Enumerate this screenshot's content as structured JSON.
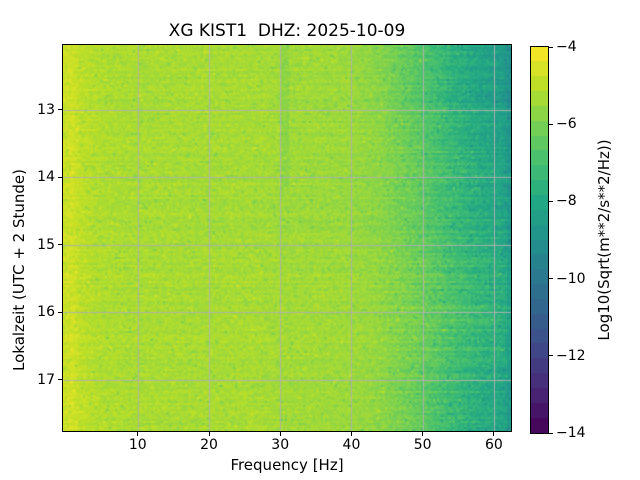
{
  "chart": {
    "title": "XG KIST1  DHZ: 2025-10-09",
    "xlabel": "Frequency [Hz]",
    "ylabel": "Lokalzeit (UTC + 2 Stunde)",
    "colorbar_label": "Log10(Sqrt(m**2/s**2/Hz))"
  },
  "chart_data": {
    "type": "heatmap",
    "subtype": "seismic-spectrogram",
    "title": "XG KIST1  DHZ: 2025-10-09",
    "xlabel": "Frequency [Hz]",
    "ylabel": "Lokalzeit (UTC + 2 Stunde)",
    "colorbar_label": "Log10(Sqrt(m**2/s**2/Hz))",
    "colormap": "viridis",
    "clim": [
      -14,
      -4
    ],
    "xlim": [
      -0.5,
      62.4
    ],
    "ylim_top_to_bottom": [
      12.04,
      17.76
    ],
    "grid_on": true,
    "grid_color": "#b0b0b0",
    "x_ticks": [
      10,
      20,
      30,
      40,
      50,
      60
    ],
    "x_tick_labels": [
      "10",
      "20",
      "30",
      "40",
      "50",
      "60"
    ],
    "y_ticks": [
      13,
      14,
      15,
      16,
      17
    ],
    "y_tick_labels": [
      "13",
      "14",
      "15",
      "16",
      "17"
    ],
    "colorbar_ticks": [
      -4,
      -6,
      -8,
      -10,
      -12,
      -14
    ],
    "colorbar_tick_labels": [
      "−4",
      "−6",
      "−8",
      "−10",
      "−12",
      "−14"
    ],
    "colorbar_levels": 26,
    "freqs_hz": [
      0,
      0.8,
      2,
      5,
      10,
      15,
      20,
      25,
      30,
      35,
      40,
      44,
      48,
      52,
      55,
      58,
      60,
      61.5,
      62.3,
      63
    ],
    "times_hours": [
      12.0,
      12.5,
      13.0,
      13.5,
      14.0,
      14.5,
      15.0,
      15.5,
      16.0,
      16.5,
      17.0,
      17.4,
      17.8
    ],
    "values_log10_sqrt_psd": [
      [
        -4.8,
        -4.7,
        -5.0,
        -5.2,
        -5.25,
        -5.25,
        -5.3,
        -5.3,
        -5.35,
        -5.4,
        -5.5,
        -5.8,
        -6.4,
        -7.2,
        -7.8,
        -8.2,
        -8.4,
        -8.6,
        -9.2,
        -10.2
      ],
      [
        -4.8,
        -4.7,
        -5.0,
        -5.2,
        -5.3,
        -5.3,
        -5.3,
        -5.3,
        -5.4,
        -5.4,
        -5.5,
        -5.8,
        -6.4,
        -7.1,
        -7.7,
        -8.1,
        -8.3,
        -8.5,
        -9.1,
        -10.1
      ],
      [
        -4.8,
        -4.7,
        -5.0,
        -5.2,
        -5.3,
        -5.3,
        -5.35,
        -5.3,
        -5.4,
        -5.45,
        -5.5,
        -5.75,
        -6.3,
        -7.0,
        -7.6,
        -8.0,
        -8.2,
        -8.4,
        -9.0,
        -10.0
      ],
      [
        -4.8,
        -4.7,
        -5.0,
        -5.2,
        -5.3,
        -5.3,
        -5.35,
        -5.3,
        -5.4,
        -5.45,
        -5.5,
        -5.7,
        -6.2,
        -6.9,
        -7.4,
        -7.9,
        -8.1,
        -8.3,
        -8.9,
        -9.9
      ],
      [
        -4.8,
        -4.7,
        -5.0,
        -5.2,
        -5.3,
        -5.3,
        -5.35,
        -5.35,
        -5.4,
        -5.45,
        -5.55,
        -5.7,
        -6.2,
        -6.8,
        -7.3,
        -7.8,
        -8.0,
        -8.2,
        -8.8,
        -9.8
      ],
      [
        -4.8,
        -4.7,
        -5.0,
        -5.25,
        -5.3,
        -5.3,
        -5.4,
        -5.35,
        -5.45,
        -5.5,
        -5.55,
        -5.75,
        -6.2,
        -6.8,
        -7.3,
        -7.7,
        -7.9,
        -8.1,
        -8.7,
        -9.7
      ],
      [
        -4.8,
        -4.7,
        -5.0,
        -5.2,
        -5.3,
        -5.3,
        -5.35,
        -5.35,
        -5.4,
        -5.45,
        -5.5,
        -5.7,
        -6.1,
        -6.7,
        -7.2,
        -7.6,
        -7.8,
        -8.0,
        -8.6,
        -9.6
      ],
      [
        -4.8,
        -4.7,
        -5.0,
        -5.2,
        -5.3,
        -5.3,
        -5.35,
        -5.3,
        -5.4,
        -5.4,
        -5.45,
        -5.6,
        -6.0,
        -6.5,
        -7.0,
        -7.4,
        -7.6,
        -7.8,
        -8.4,
        -9.5
      ],
      [
        -4.8,
        -4.7,
        -5.0,
        -5.2,
        -5.25,
        -5.25,
        -5.3,
        -5.25,
        -5.3,
        -5.35,
        -5.4,
        -5.55,
        -5.9,
        -6.4,
        -6.8,
        -7.2,
        -7.4,
        -7.6,
        -8.2,
        -9.4
      ],
      [
        -4.8,
        -4.7,
        -5.0,
        -5.2,
        -5.3,
        -5.3,
        -5.3,
        -5.3,
        -5.35,
        -5.4,
        -5.45,
        -5.6,
        -6.0,
        -6.5,
        -7.0,
        -7.4,
        -7.6,
        -7.8,
        -8.4,
        -9.5
      ],
      [
        -4.8,
        -4.7,
        -5.0,
        -5.2,
        -5.3,
        -5.3,
        -5.35,
        -5.3,
        -5.4,
        -5.4,
        -5.5,
        -5.65,
        -6.1,
        -6.7,
        -7.2,
        -7.6,
        -7.8,
        -8.0,
        -8.6,
        -9.8
      ],
      [
        -4.8,
        -4.7,
        -5.0,
        -5.2,
        -5.3,
        -5.3,
        -5.35,
        -5.3,
        -5.4,
        -5.45,
        -5.5,
        -5.7,
        -6.2,
        -6.9,
        -7.4,
        -7.8,
        -8.0,
        -8.2,
        -8.8,
        -10.2
      ],
      [
        -4.8,
        -4.7,
        -5.0,
        -5.2,
        -5.3,
        -5.3,
        -5.35,
        -5.3,
        -5.4,
        -5.45,
        -5.5,
        -5.7,
        -6.2,
        -6.9,
        -7.5,
        -7.9,
        -8.1,
        -8.3,
        -8.9,
        -10.3
      ]
    ],
    "column_features": [
      {
        "freq_hz": 30.6,
        "half_width_hz": 0.5,
        "delta": -0.3,
        "t_start": 12.0,
        "t_end": 14.2
      }
    ]
  }
}
